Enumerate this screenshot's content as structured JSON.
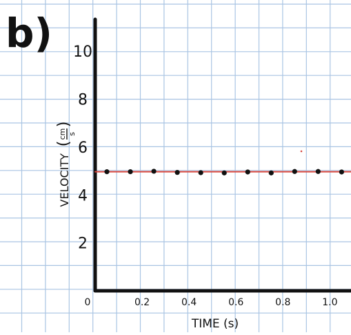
{
  "panel_label": "b)",
  "colors": {
    "grid": "#a9c4e3",
    "axis": "#111111",
    "fit_line": "#d8473f",
    "points": "#111111",
    "background": "#ffffff"
  },
  "chart_data": {
    "type": "scatter",
    "title": "",
    "xlabel": "TIME (s)",
    "ylabel": "VELOCITY",
    "ylabel_unit_num": "cm",
    "ylabel_unit_den": "s",
    "xlim": [
      0,
      1.09
    ],
    "ylim": [
      0,
      11.1
    ],
    "x_ticks": [
      0.2,
      0.4,
      0.6,
      0.8,
      1.0
    ],
    "x_tick_labels": [
      "0.2",
      "0.4",
      "0.6",
      "0.8",
      "1.0"
    ],
    "origin_label": "0",
    "y_ticks": [
      2,
      4,
      6,
      8,
      10
    ],
    "y_tick_labels": [
      "2",
      "4",
      "6",
      "8",
      "10"
    ],
    "grid": true,
    "legend": "none",
    "series": [
      {
        "x": [
          0.05,
          0.15,
          0.25,
          0.35,
          0.45,
          0.55,
          0.65,
          0.75,
          0.85,
          0.95,
          1.05
        ],
        "y": [
          4.97,
          4.97,
          4.99,
          4.94,
          4.93,
          4.92,
          4.96,
          4.92,
          4.98,
          4.98,
          4.96
        ]
      }
    ],
    "fit_line": {
      "x": [
        0,
        1.09
      ],
      "y": [
        4.97,
        4.97
      ],
      "style": "solid"
    }
  }
}
